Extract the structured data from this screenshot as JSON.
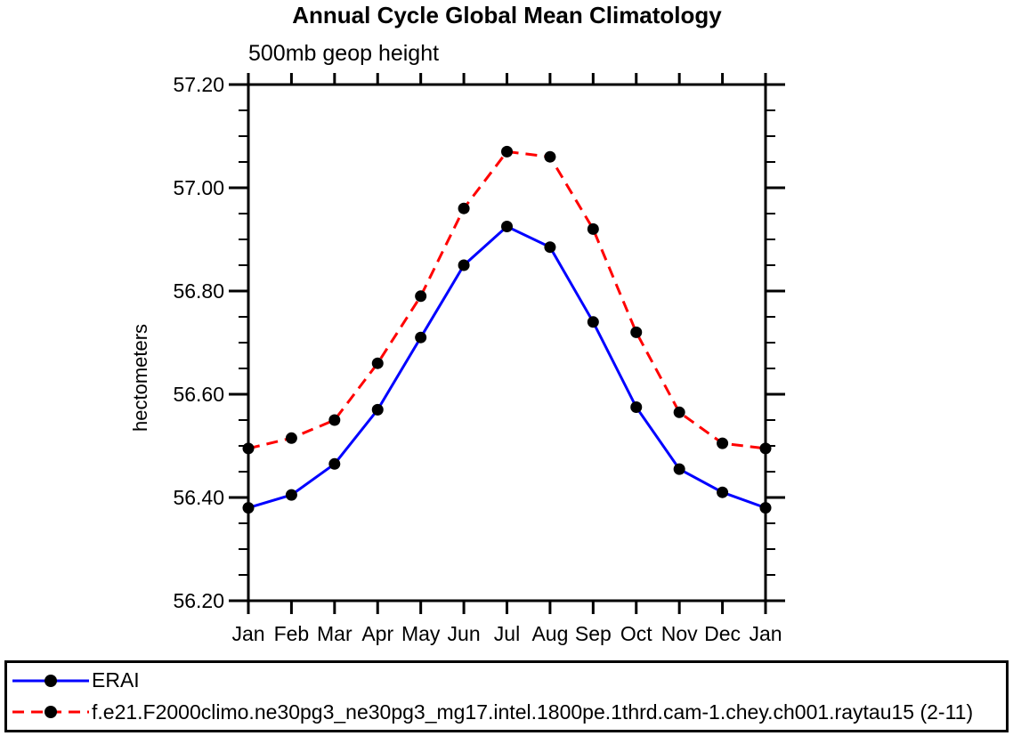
{
  "chart": {
    "title": "Annual Cycle Global Mean Climatology",
    "subtitle": "500mb geop height",
    "ylabel": "hectometers"
  },
  "chart_data": {
    "type": "line",
    "title": "Annual Cycle Global Mean Climatology",
    "subtitle": "500mb geop height",
    "xlabel": "",
    "ylabel": "hectometers",
    "categories": [
      "Jan",
      "Feb",
      "Mar",
      "Apr",
      "May",
      "Jun",
      "Jul",
      "Aug",
      "Sep",
      "Oct",
      "Nov",
      "Dec",
      "Jan"
    ],
    "ylim": [
      56.2,
      57.2
    ],
    "ytick_major": [
      56.2,
      56.4,
      56.6,
      56.8,
      57.0,
      57.2
    ],
    "ytick_minor_step": 0.05,
    "grid": false,
    "legend_position": "bottom-box",
    "series": [
      {
        "name": "ERAI",
        "color": "#0000ff",
        "line_style": "solid",
        "marker": "filled-circle",
        "marker_color": "#000000",
        "values": [
          56.38,
          56.405,
          56.465,
          56.57,
          56.71,
          56.85,
          56.925,
          56.885,
          56.74,
          56.575,
          56.455,
          56.41,
          56.38
        ]
      },
      {
        "name": "f.e21.F2000climo.ne30pg3_ne30pg3_mg17.intel.1800pe.1thrd.cam-1.chey.ch001.raytau15 (2-11)",
        "color": "#ff0000",
        "line_style": "dashed",
        "marker": "filled-circle",
        "marker_color": "#000000",
        "values": [
          56.495,
          56.515,
          56.55,
          56.66,
          56.79,
          56.96,
          57.07,
          57.06,
          56.92,
          56.72,
          56.565,
          56.505,
          56.495
        ]
      }
    ]
  },
  "colors": {
    "axis": "#000000",
    "background": "#ffffff",
    "erai_line": "#0000ff",
    "model_line": "#ff0000",
    "marker": "#000000"
  }
}
